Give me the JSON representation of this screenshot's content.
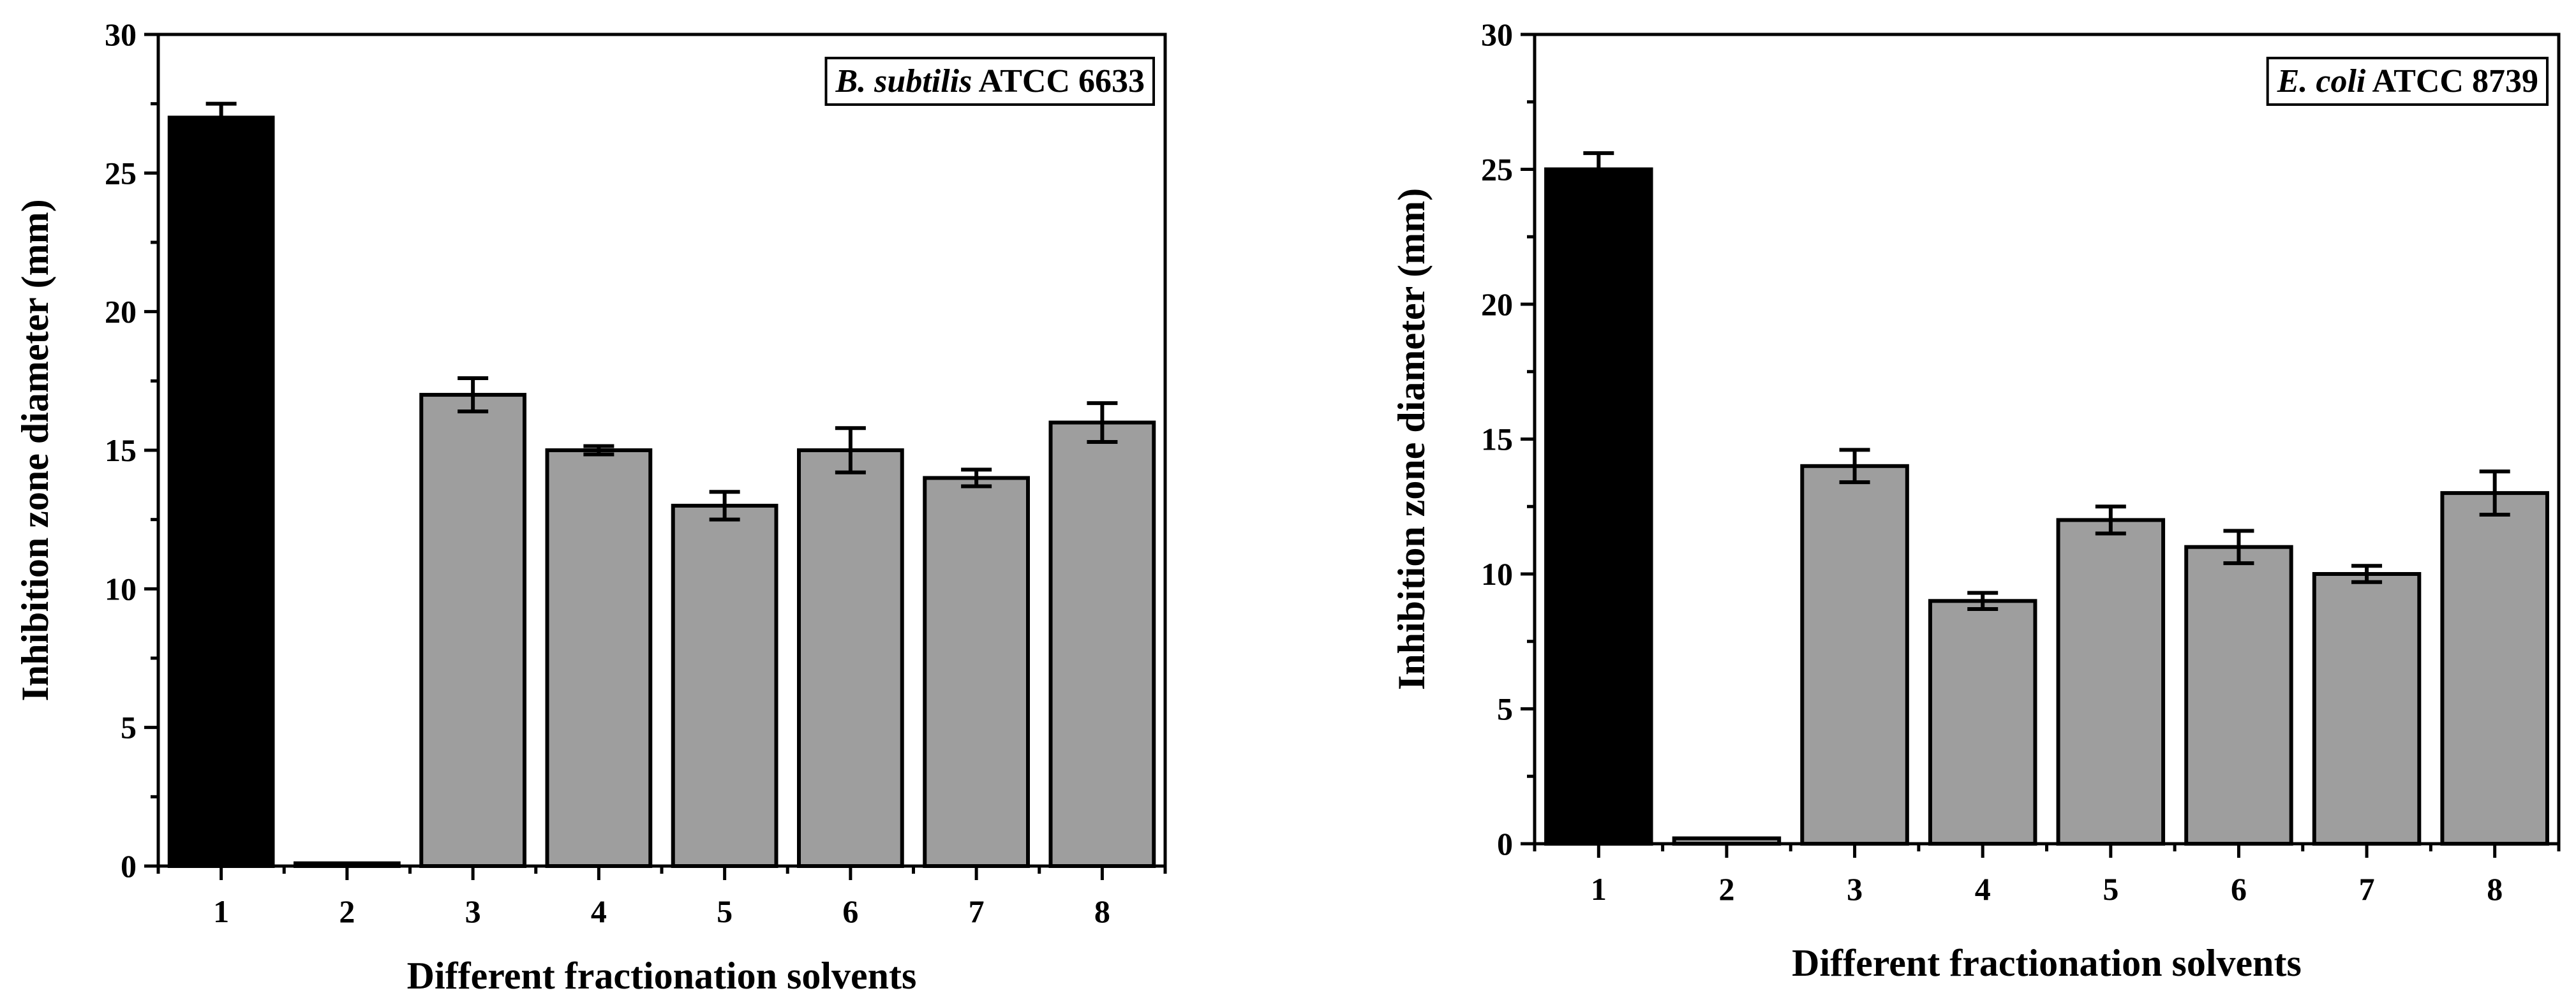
{
  "chart_data": [
    {
      "type": "bar",
      "legend_italic": "B. subtilis",
      "legend_rest": " ATCC 6633",
      "xlabel": "Different fractionation solvents",
      "ylabel": "Inhibition zone diameter (mm)",
      "categories": [
        "1",
        "2",
        "3",
        "4",
        "5",
        "6",
        "7",
        "8"
      ],
      "values": [
        27,
        0.1,
        17,
        15,
        13,
        15,
        14,
        16
      ],
      "errors": [
        0.5,
        0,
        0.6,
        0.15,
        0.5,
        0.8,
        0.3,
        0.7
      ],
      "bar_colors": [
        "#000000",
        "#9e9e9e",
        "#9e9e9e",
        "#9e9e9e",
        "#9e9e9e",
        "#9e9e9e",
        "#9e9e9e",
        "#9e9e9e"
      ],
      "ylim": [
        0,
        30
      ],
      "yticks": [
        0,
        5,
        10,
        15,
        20,
        25,
        30
      ],
      "legend_position": "top-right"
    },
    {
      "type": "bar",
      "legend_italic": "E. coli",
      "legend_rest": " ATCC 8739",
      "xlabel": "Different fractionation solvents",
      "ylabel": "Inhibition zone diameter (mm)",
      "categories": [
        "1",
        "2",
        "3",
        "4",
        "5",
        "6",
        "7",
        "8"
      ],
      "values": [
        25,
        0.2,
        14,
        9,
        12,
        11,
        10,
        13
      ],
      "errors": [
        0.6,
        0,
        0.6,
        0.3,
        0.5,
        0.6,
        0.3,
        0.8
      ],
      "bar_colors": [
        "#000000",
        "#9e9e9e",
        "#9e9e9e",
        "#9e9e9e",
        "#9e9e9e",
        "#9e9e9e",
        "#9e9e9e",
        "#9e9e9e"
      ],
      "ylim": [
        0,
        30
      ],
      "yticks": [
        0,
        5,
        10,
        15,
        20,
        25,
        30
      ],
      "legend_position": "top-right"
    }
  ]
}
